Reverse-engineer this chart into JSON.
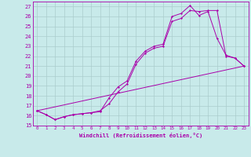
{
  "title": "",
  "xlabel": "Windchill (Refroidissement éolien,°C)",
  "ylabel": "",
  "xlim": [
    -0.5,
    23.5
  ],
  "ylim": [
    15,
    27.5
  ],
  "yticks": [
    15,
    16,
    17,
    18,
    19,
    20,
    21,
    22,
    23,
    24,
    25,
    26,
    27
  ],
  "xticks": [
    0,
    1,
    2,
    3,
    4,
    5,
    6,
    7,
    8,
    9,
    10,
    11,
    12,
    13,
    14,
    15,
    16,
    17,
    18,
    19,
    20,
    21,
    22,
    23
  ],
  "bg_color": "#c8eaea",
  "line_color": "#aa00aa",
  "grid_color": "#aacccc",
  "line1_x": [
    0,
    1,
    2,
    3,
    4,
    5,
    6,
    7,
    8,
    9,
    10,
    11,
    12,
    13,
    14,
    15,
    16,
    17,
    18,
    19,
    20,
    21,
    22,
    23
  ],
  "line1_y": [
    16.5,
    16.1,
    15.6,
    15.9,
    16.1,
    16.2,
    16.3,
    16.4,
    17.8,
    18.9,
    19.5,
    21.5,
    22.5,
    23.0,
    23.2,
    26.0,
    26.3,
    27.1,
    26.1,
    26.5,
    23.8,
    22.1,
    21.8,
    21.0
  ],
  "line2_x": [
    0,
    1,
    2,
    3,
    4,
    5,
    6,
    7,
    8,
    9,
    10,
    11,
    12,
    13,
    14,
    15,
    16,
    17,
    18,
    19,
    20,
    21,
    22,
    23
  ],
  "line2_y": [
    16.5,
    16.1,
    15.6,
    15.9,
    16.1,
    16.2,
    16.3,
    16.5,
    17.2,
    18.4,
    19.2,
    21.2,
    22.3,
    22.8,
    23.0,
    25.5,
    25.8,
    26.6,
    26.5,
    26.6,
    26.6,
    22.0,
    21.8,
    21.0
  ],
  "line3_x": [
    0,
    23
  ],
  "line3_y": [
    16.5,
    21.0
  ]
}
